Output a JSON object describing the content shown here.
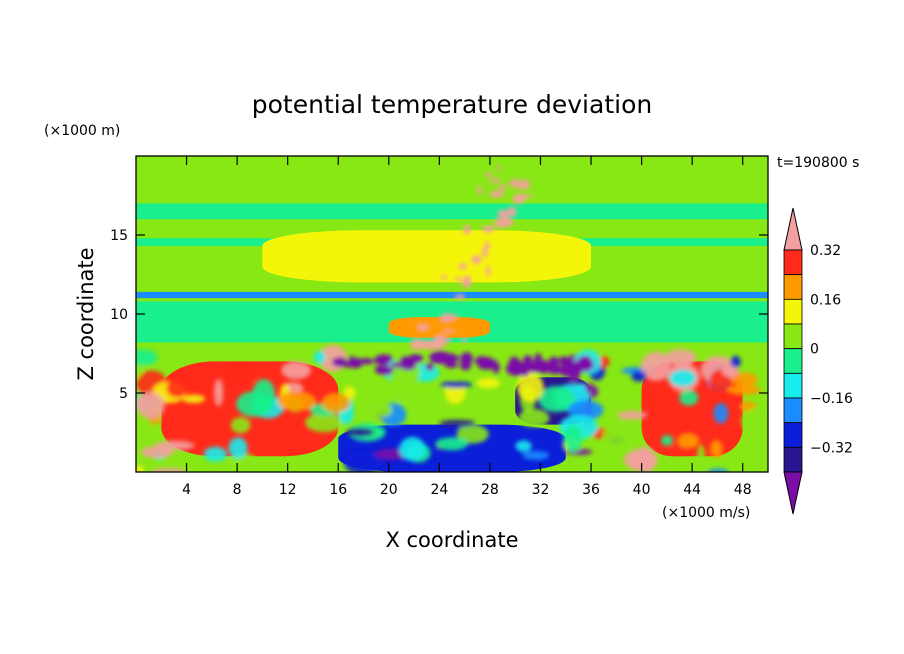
{
  "chart_data": {
    "type": "heatmap",
    "title": "potential temperature deviation",
    "time_label": "t=190800 s",
    "xlabel": "X coordinate",
    "ylabel": "Z coordinate",
    "x_unit": "(×1000 m/s)",
    "y_unit": "(×1000 m)",
    "xlim": [
      0,
      50
    ],
    "ylim": [
      0,
      20
    ],
    "xticks": [
      4,
      8,
      12,
      16,
      20,
      24,
      28,
      32,
      36,
      40,
      44,
      48
    ],
    "yticks": [
      5,
      10,
      15
    ],
    "colorbar": {
      "levels": [
        -0.4,
        -0.32,
        -0.24,
        -0.16,
        -0.08,
        0,
        0.08,
        0.16,
        0.24,
        0.32,
        0.4
      ],
      "tick_labels": [
        "0.32",
        "0.16",
        "0",
        "−0.16",
        "−0.32"
      ],
      "tick_values": [
        0.32,
        0.16,
        0,
        -0.16,
        -0.32
      ],
      "colors": [
        "#7a0fa8",
        "#2a1590",
        "#0b1ed8",
        "#1a8cff",
        "#18ecec",
        "#19ef8c",
        "#88e814",
        "#f5f50a",
        "#ff9a00",
        "#ff2a1a",
        "#f4a0a0"
      ]
    },
    "features": [
      {
        "name": "background-upper",
        "x": [
          0,
          50
        ],
        "y": [
          7.5,
          20
        ],
        "value": 0.02
      },
      {
        "name": "cyan-band-16.5",
        "x": [
          0,
          50
        ],
        "y": [
          16,
          17
        ],
        "value": -0.08
      },
      {
        "name": "cyan-band-14.5",
        "x": [
          0,
          50
        ],
        "y": [
          14.3,
          14.8
        ],
        "value": -0.08
      },
      {
        "name": "lime-layer",
        "x": [
          10,
          36
        ],
        "y": [
          12,
          15.3
        ],
        "value": 0.1
      },
      {
        "name": "blue-band-11",
        "x": [
          0,
          50
        ],
        "y": [
          11,
          11.4
        ],
        "value": -0.18
      },
      {
        "name": "cyan-layer-9",
        "x": [
          0,
          50
        ],
        "y": [
          8.2,
          10.8
        ],
        "value": -0.08
      },
      {
        "name": "yellow-core",
        "x": [
          20,
          28
        ],
        "y": [
          8.5,
          9.8
        ],
        "value": 0.2
      },
      {
        "name": "lower-layer",
        "x": [
          0,
          50
        ],
        "y": [
          0,
          7.5
        ],
        "value": 0.05
      },
      {
        "name": "warm-west",
        "x": [
          2,
          16
        ],
        "y": [
          1,
          7
        ],
        "value": 0.25
      },
      {
        "name": "cold-central",
        "x": [
          16,
          34
        ],
        "y": [
          0,
          3
        ],
        "value": -0.3
      },
      {
        "name": "cold-east",
        "x": [
          30,
          36
        ],
        "y": [
          3,
          6
        ],
        "value": -0.4
      },
      {
        "name": "warm-east",
        "x": [
          40,
          48
        ],
        "y": [
          1,
          7
        ],
        "value": 0.3
      }
    ]
  }
}
